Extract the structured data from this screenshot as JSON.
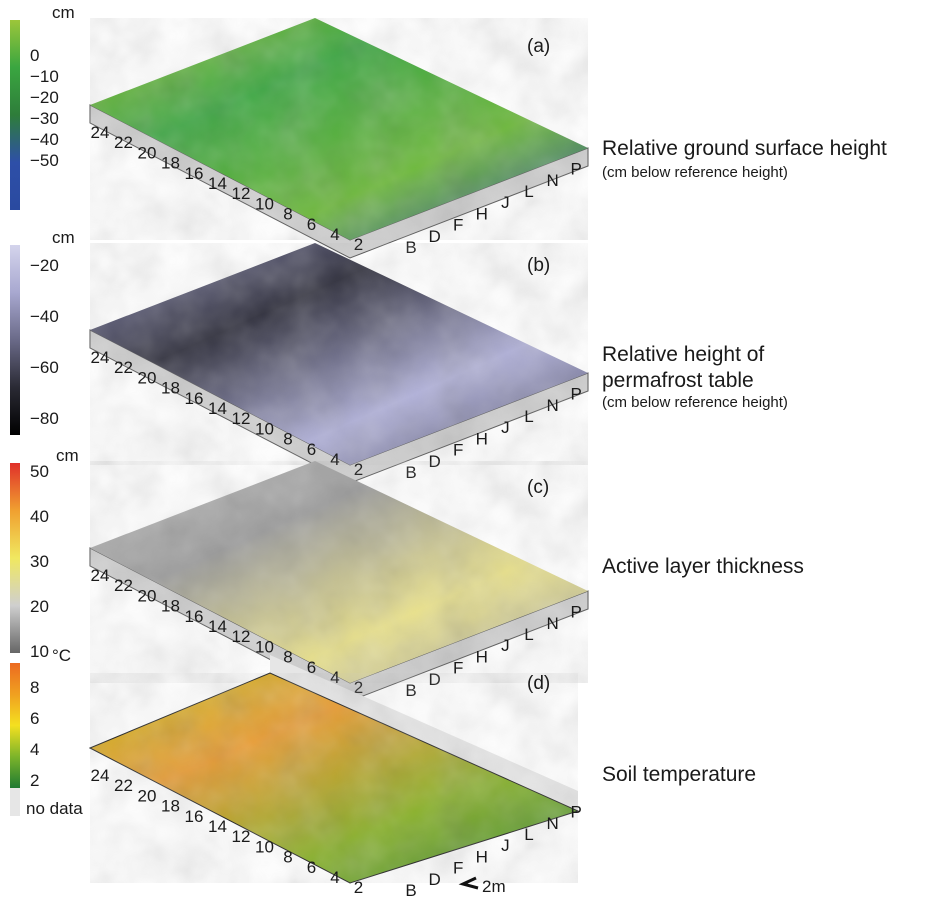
{
  "y_axis_labels": [
    "24",
    "22",
    "20",
    "18",
    "16",
    "14",
    "12",
    "10",
    "8",
    "6",
    "4",
    "2"
  ],
  "x_axis_labels": [
    "B",
    "D",
    "F",
    "H",
    "J",
    "L",
    "N",
    "P"
  ],
  "scale_bar": "2m",
  "panels": [
    {
      "label": "(a)",
      "title": "Relative ground surface height",
      "subtitle": "(cm below reference height)",
      "unit": "cm",
      "ticks": [
        "0",
        "−10",
        "−20",
        "−30",
        "−40",
        "−50"
      ],
      "colors": [
        "#9cc63a",
        "#3aa640",
        "#2e7d3a",
        "#2e4fa8",
        "#2a4aa0"
      ]
    },
    {
      "label": "(b)",
      "title": "Relative height of",
      "title2": "permafrost table",
      "subtitle": "(cm below reference height)",
      "unit": "cm",
      "ticks": [
        "−20",
        "−40",
        "−60",
        "−80"
      ],
      "colors": [
        "#d4d4ec",
        "#a8a8d0",
        "#6a6a88",
        "#2a2a34",
        "#000000"
      ]
    },
    {
      "label": "(c)",
      "title": "Active layer thickness",
      "unit": "cm",
      "ticks": [
        "50",
        "40",
        "30",
        "20",
        "10"
      ],
      "colors": [
        "#e0302a",
        "#f0a030",
        "#f0e860",
        "#cfcfcf",
        "#666666"
      ]
    },
    {
      "label": "(d)",
      "title": "Soil temperature",
      "unit": "°C",
      "ticks": [
        "8",
        "6",
        "4",
        "2"
      ],
      "no_data": "no data",
      "colors": [
        "#ec6a20",
        "#f0a020",
        "#f4e020",
        "#7cb42a",
        "#1f7a32"
      ]
    }
  ]
}
